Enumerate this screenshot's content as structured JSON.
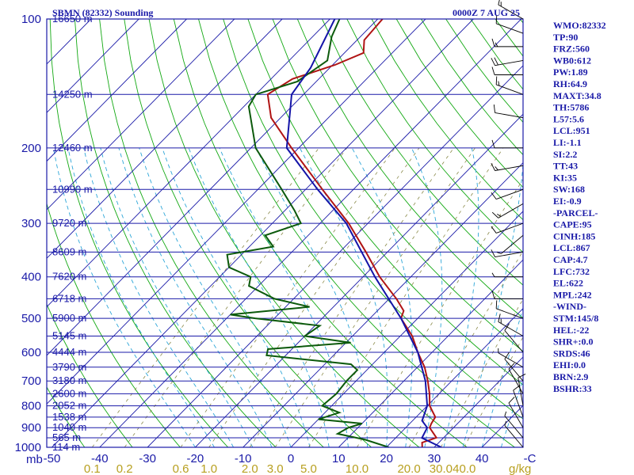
{
  "title_left": "SBMN (82332) Sounding",
  "title_right": "0000Z  7 AUG 25",
  "chart_data": {
    "type": "line",
    "pressure_levels": [
      100,
      200,
      300,
      400,
      500,
      600,
      700,
      800,
      900,
      1000
    ],
    "pressure_labels": [
      "100",
      "200",
      "300",
      "400",
      "500",
      "600",
      "700",
      "800",
      "900",
      "1000"
    ],
    "height_labels": [
      {
        "p": 100,
        "label": "16650 m"
      },
      {
        "p": 150,
        "label": "14250 m"
      },
      {
        "p": 200,
        "label": "12460 m"
      },
      {
        "p": 250,
        "label": "10990 m"
      },
      {
        "p": 300,
        "label": "9720 m"
      },
      {
        "p": 350,
        "label": "8609 m"
      },
      {
        "p": 400,
        "label": "7620 m"
      },
      {
        "p": 450,
        "label": "6718 m"
      },
      {
        "p": 500,
        "label": "5900 m"
      },
      {
        "p": 550,
        "label": "5145 m"
      },
      {
        "p": 600,
        "label": "4444 m"
      },
      {
        "p": 650,
        "label": "3790 m"
      },
      {
        "p": 700,
        "label": "3180 m"
      },
      {
        "p": 750,
        "label": "2600 m"
      },
      {
        "p": 800,
        "label": "2052 m"
      },
      {
        "p": 850,
        "label": "1538 m"
      },
      {
        "p": 900,
        "label": "1040 m"
      },
      {
        "p": 950,
        "label": "565 m"
      },
      {
        "p": 1000,
        "label": "114 m"
      }
    ],
    "temperature_axis": {
      "unit_label": "mb",
      "ticks": [
        -50,
        -40,
        -30,
        -20,
        -10,
        0,
        10,
        20,
        30,
        40,
        50
      ],
      "tick_labels": [
        "-50",
        "-40",
        "-30",
        "-20",
        "-10",
        "0",
        "10",
        "20",
        "30",
        "40",
        "-C"
      ]
    },
    "mixing_ratio_axis": {
      "unit_label": "g/kg",
      "values": [
        0.1,
        0.2,
        0.6,
        1.0,
        2.0,
        3.0,
        5.0,
        10.0,
        20.0,
        30.0,
        40.0
      ],
      "labels": [
        "0.1",
        "0.2",
        "0.6",
        "1.0",
        "2.0",
        "3.0",
        "5.0",
        "10.0",
        "20.0",
        "30.0",
        "40.0"
      ]
    },
    "series": [
      {
        "key": "temperature",
        "color": "#b01414",
        "points": [
          [
            100,
            -69.0
          ],
          [
            112,
            -68.5
          ],
          [
            120,
            -66.0
          ],
          [
            128,
            -69.5
          ],
          [
            138,
            -75.5
          ],
          [
            150,
            -77.5
          ],
          [
            170,
            -72.0
          ],
          [
            200,
            -61.5
          ],
          [
            250,
            -46.5
          ],
          [
            300,
            -34.0
          ],
          [
            350,
            -24.5
          ],
          [
            400,
            -16.5
          ],
          [
            450,
            -8.5
          ],
          [
            480,
            -4.5
          ],
          [
            500,
            -3.5
          ],
          [
            550,
            2.5
          ],
          [
            600,
            7.0
          ],
          [
            650,
            11.5
          ],
          [
            700,
            15.0
          ],
          [
            750,
            18.0
          ],
          [
            800,
            20.5
          ],
          [
            850,
            24.0
          ],
          [
            880,
            24.5
          ],
          [
            900,
            25.0
          ],
          [
            950,
            28.5
          ],
          [
            975,
            26.5
          ],
          [
            1000,
            27.5
          ]
        ]
      },
      {
        "key": "dewpoint",
        "color": "#0c5a0c",
        "points": [
          [
            100,
            -78.0
          ],
          [
            110,
            -76.0
          ],
          [
            125,
            -72.0
          ],
          [
            140,
            -74.0
          ],
          [
            150,
            -80.0
          ],
          [
            160,
            -79.0
          ],
          [
            200,
            -69.0
          ],
          [
            250,
            -55.0
          ],
          [
            280,
            -48.0
          ],
          [
            300,
            -44.0
          ],
          [
            320,
            -49.0
          ],
          [
            340,
            -45.0
          ],
          [
            355,
            -53.0
          ],
          [
            380,
            -50.0
          ],
          [
            400,
            -43.5
          ],
          [
            420,
            -42.0
          ],
          [
            450,
            -34.0
          ],
          [
            470,
            -25.0
          ],
          [
            490,
            -40.0
          ],
          [
            500,
            -34.0
          ],
          [
            520,
            -19.0
          ],
          [
            550,
            -20.0
          ],
          [
            570,
            -9.0
          ],
          [
            590,
            -25.0
          ],
          [
            610,
            -24.0
          ],
          [
            640,
            -4.5
          ],
          [
            660,
            -2.0
          ],
          [
            700,
            -2.0
          ],
          [
            750,
            -1.5
          ],
          [
            800,
            -2.0
          ],
          [
            830,
            3.0
          ],
          [
            860,
            0.0
          ],
          [
            880,
            10.0
          ],
          [
            900,
            8.0
          ],
          [
            930,
            7.0
          ],
          [
            960,
            14.0
          ],
          [
            1000,
            20.5
          ]
        ]
      },
      {
        "key": "parcel",
        "color": "#1414a8",
        "points": [
          [
            100,
            -79.0
          ],
          [
            130,
            -74.0
          ],
          [
            150,
            -72.5
          ],
          [
            200,
            -62.5
          ],
          [
            250,
            -47.5
          ],
          [
            300,
            -34.5
          ],
          [
            400,
            -17.5
          ],
          [
            500,
            -3.5
          ],
          [
            600,
            7.0
          ],
          [
            700,
            14.5
          ],
          [
            800,
            20.0
          ],
          [
            867,
            22.0
          ],
          [
            900,
            24.5
          ],
          [
            951,
            25.5
          ],
          [
            1000,
            31.5
          ]
        ]
      }
    ],
    "winds": [
      [
        100,
        300,
        15
      ],
      [
        108,
        290,
        10
      ],
      [
        116,
        270,
        15
      ],
      [
        125,
        260,
        20
      ],
      [
        135,
        270,
        10
      ],
      [
        150,
        290,
        15
      ],
      [
        170,
        280,
        10
      ],
      [
        200,
        270,
        10
      ],
      [
        220,
        260,
        15
      ],
      [
        250,
        250,
        10
      ],
      [
        270,
        240,
        15
      ],
      [
        300,
        250,
        10
      ],
      [
        320,
        230,
        5
      ],
      [
        350,
        260,
        10
      ],
      [
        400,
        270,
        5
      ],
      [
        450,
        270,
        10
      ],
      [
        500,
        290,
        10
      ],
      [
        550,
        300,
        15
      ],
      [
        600,
        320,
        10
      ],
      [
        650,
        300,
        5
      ],
      [
        700,
        320,
        10
      ],
      [
        750,
        330,
        10
      ],
      [
        800,
        350,
        10
      ],
      [
        850,
        340,
        10
      ],
      [
        900,
        330,
        10
      ],
      [
        950,
        320,
        5
      ],
      [
        1000,
        320,
        5
      ]
    ]
  },
  "indices": [
    "WMO:82332",
    "TP:90",
    "FRZ:560",
    "WB0:612",
    "PW:1.89",
    "RH:64.9",
    "MAXT:34.8",
    "TH:5786",
    "L57:5.6",
    "LCL:951",
    "LI:-1.1",
    "SI:2.2",
    "TT:43",
    "KI:35",
    "SW:168",
    "EI:-0.9",
    "-PARCEL-",
    "CAPE:95",
    "CINH:185",
    "LCL:867",
    "CAP:4.7",
    "LFC:732",
    "EL:622",
    "MPL:242",
    "-WIND-",
    "STM:145/8",
    "HEL:-22",
    "SHR+:0.0",
    "SRDS:46",
    "EHI:0.0",
    "BRN:2.9",
    "BSHR:33"
  ],
  "colors": {
    "frame": "#1a1aa8",
    "dry_adiabat": "#12a812",
    "moist_adiabat": "#2da6d8",
    "mixing_ratio": "#8a8a4a",
    "isotherm": "#1a1aa8"
  }
}
